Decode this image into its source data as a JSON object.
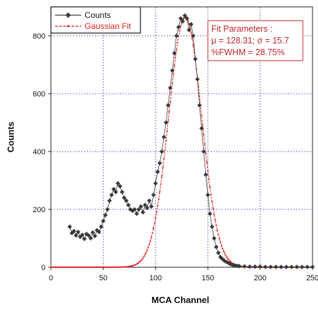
{
  "chart_data": {
    "type": "scatter",
    "title": "",
    "xlabel": "MCA Channel",
    "ylabel": "Counts",
    "xlim": [
      0,
      250
    ],
    "ylim": [
      0,
      900
    ],
    "x_ticks": [
      0,
      50,
      100,
      150,
      200,
      250
    ],
    "y_ticks": [
      0,
      200,
      400,
      600,
      800
    ],
    "grid": true,
    "legend_placement": "top-left",
    "series": [
      {
        "name": "Counts",
        "color": "#3a3a3a",
        "marker": "diamond",
        "x": [
          18,
          20,
          22,
          24,
          26,
          28,
          30,
          32,
          34,
          36,
          38,
          40,
          42,
          44,
          46,
          48,
          50,
          52,
          54,
          56,
          58,
          60,
          62,
          64,
          66,
          68,
          70,
          72,
          74,
          76,
          78,
          80,
          82,
          84,
          86,
          88,
          90,
          92,
          94,
          96,
          98,
          100,
          102,
          104,
          106,
          108,
          110,
          112,
          114,
          116,
          118,
          120,
          122,
          124,
          126,
          128,
          130,
          132,
          134,
          136,
          138,
          140,
          142,
          144,
          146,
          148,
          150,
          152,
          154,
          156,
          158,
          160,
          162,
          164,
          166,
          168,
          170,
          172,
          174,
          176,
          178,
          180,
          185,
          190,
          195,
          200,
          205,
          210,
          215,
          220,
          225,
          230,
          235,
          240,
          245,
          250
        ],
        "y": [
          140,
          118,
          125,
          110,
          122,
          105,
          112,
          98,
          115,
          110,
          100,
          120,
          108,
          128,
          122,
          140,
          160,
          180,
          200,
          230,
          250,
          270,
          260,
          290,
          280,
          260,
          240,
          230,
          215,
          200,
          195,
          200,
          185,
          200,
          210,
          190,
          215,
          205,
          230,
          210,
          250,
          290,
          330,
          360,
          400,
          450,
          500,
          560,
          620,
          680,
          740,
          800,
          830,
          860,
          850,
          870,
          860,
          820,
          840,
          800,
          720,
          650,
          560,
          480,
          400,
          320,
          250,
          185,
          140,
          100,
          70,
          50,
          35,
          28,
          22,
          18,
          14,
          10,
          8,
          6,
          5,
          4,
          3,
          2,
          2,
          2,
          1,
          1,
          1,
          1,
          1,
          1,
          1,
          1,
          1,
          1
        ]
      },
      {
        "name": "Gaussian Fit",
        "color": "#d22",
        "mu": 128.31,
        "sigma": 15.7,
        "amplitude": 865
      }
    ],
    "annotation": {
      "line1": "Fit Parameters :",
      "line2": "μ = 128.31; σ = 15.7",
      "line3": "%FWHM = 28.75%"
    }
  }
}
